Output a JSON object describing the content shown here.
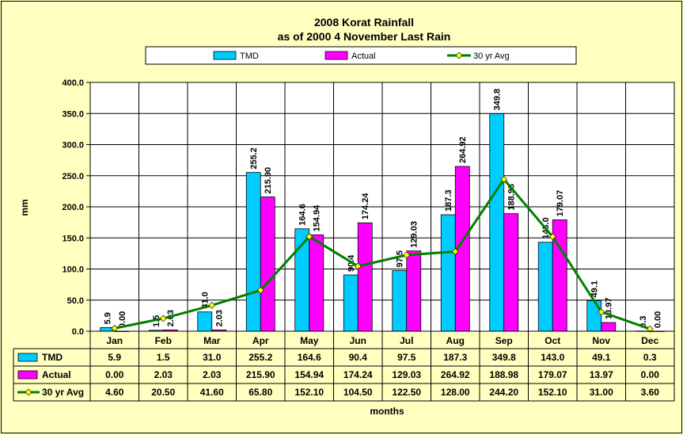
{
  "chart_data": {
    "type": "bar",
    "title": "2008 Korat Rainfall",
    "subtitle": "as of 2000 4 November Last Rain",
    "xlabel": "months",
    "ylabel": "mm",
    "ylim": [
      0,
      400
    ],
    "yticks": [
      "0.0",
      "50.0",
      "100.0",
      "150.0",
      "200.0",
      "250.0",
      "300.0",
      "350.0",
      "400.0"
    ],
    "grid": true,
    "legend_position": "top",
    "categories": [
      "Jan",
      "Feb",
      "Mar",
      "Apr",
      "May",
      "Jun",
      "Jul",
      "Aug",
      "Sep",
      "Oct",
      "Nov",
      "Dec"
    ],
    "series": [
      {
        "name": "TMD",
        "type": "bar",
        "color": "#00ccff",
        "values": [
          5.9,
          1.5,
          31.0,
          255.2,
          164.6,
          90.4,
          97.5,
          187.3,
          349.8,
          143.0,
          49.1,
          0.3
        ],
        "labels": [
          "5.9",
          "1.5",
          "31.0",
          "255.2",
          "164.6",
          "90.4",
          "97.5",
          "187.3",
          "349.8",
          "143.0",
          "49.1",
          "0.3"
        ]
      },
      {
        "name": "Actual",
        "type": "bar",
        "color": "#ff00ff",
        "values": [
          0.0,
          2.03,
          2.03,
          215.9,
          154.94,
          174.24,
          129.03,
          264.92,
          188.98,
          179.07,
          13.97,
          0.0
        ],
        "labels": [
          "0.00",
          "2.03",
          "2.03",
          "215.90",
          "154.94",
          "174.24",
          "129.03",
          "264.92",
          "188.98",
          "179.07",
          "13.97",
          "0.00"
        ]
      },
      {
        "name": "30 yr Avg",
        "type": "line",
        "color": "#008000",
        "marker_color": "#ffff00",
        "values": [
          4.6,
          20.5,
          41.6,
          65.8,
          152.1,
          104.5,
          122.5,
          128.0,
          244.2,
          152.1,
          31.0,
          3.6
        ],
        "labels": [
          "4.60",
          "20.50",
          "41.60",
          "65.80",
          "152.10",
          "104.50",
          "122.50",
          "128.00",
          "244.20",
          "152.10",
          "31.00",
          "3.60"
        ]
      }
    ]
  }
}
